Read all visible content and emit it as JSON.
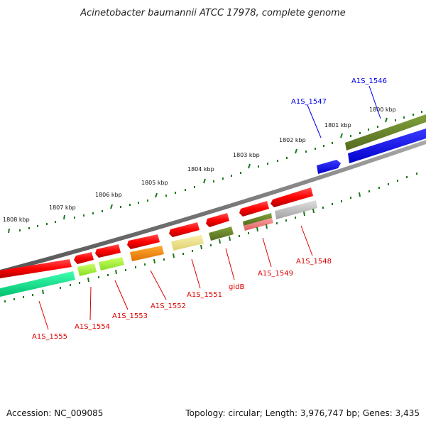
{
  "title": "Acinetobacter baumannii ATCC 17978, complete genome",
  "footer": {
    "accession": "Accession: NC_009085",
    "summary": "Topology: circular; Length: 3,976,747 bp; Genes: 3,435"
  },
  "scale_labels": [
    "1800 kbp",
    "1801 kbp",
    "1802 kbp",
    "1803 kbp",
    "1804 kbp",
    "1805 kbp",
    "1806 kbp",
    "1807 kbp",
    "1808 kbp"
  ],
  "genes": [
    {
      "name": "A1S_1546",
      "color": "#0000ee",
      "strand": "forward"
    },
    {
      "name": "A1S_1547",
      "color": "#0000ee",
      "strand": "forward"
    },
    {
      "name": "A1S_1548",
      "color": "#dd0000",
      "strand": "reverse"
    },
    {
      "name": "A1S_1549",
      "color": "#dd0000",
      "strand": "reverse"
    },
    {
      "name": "gidB",
      "color": "#dd0000",
      "strand": "reverse"
    },
    {
      "name": "A1S_1551",
      "color": "#dd0000",
      "strand": "reverse"
    },
    {
      "name": "A1S_1552",
      "color": "#dd0000",
      "strand": "reverse"
    },
    {
      "name": "A1S_1553",
      "color": "#dd0000",
      "strand": "reverse"
    },
    {
      "name": "A1S_1554",
      "color": "#dd0000",
      "strand": "reverse"
    },
    {
      "name": "A1S_1555",
      "color": "#dd0000",
      "strand": "reverse"
    }
  ],
  "colors": {
    "backbone": "#7a7a7a",
    "ticks": "#1a7a1a",
    "cog_olive": "#6b8e23",
    "cog_blue": "#0000ee",
    "cog_green": "#00e58a",
    "cog_lime": "#aaff33",
    "cog_orange": "#ff8c00",
    "cog_khaki": "#f0e68c",
    "cog_pink": "#f08080",
    "cog_gray": "#c0c0c0",
    "gene_red": "#ff0000"
  }
}
